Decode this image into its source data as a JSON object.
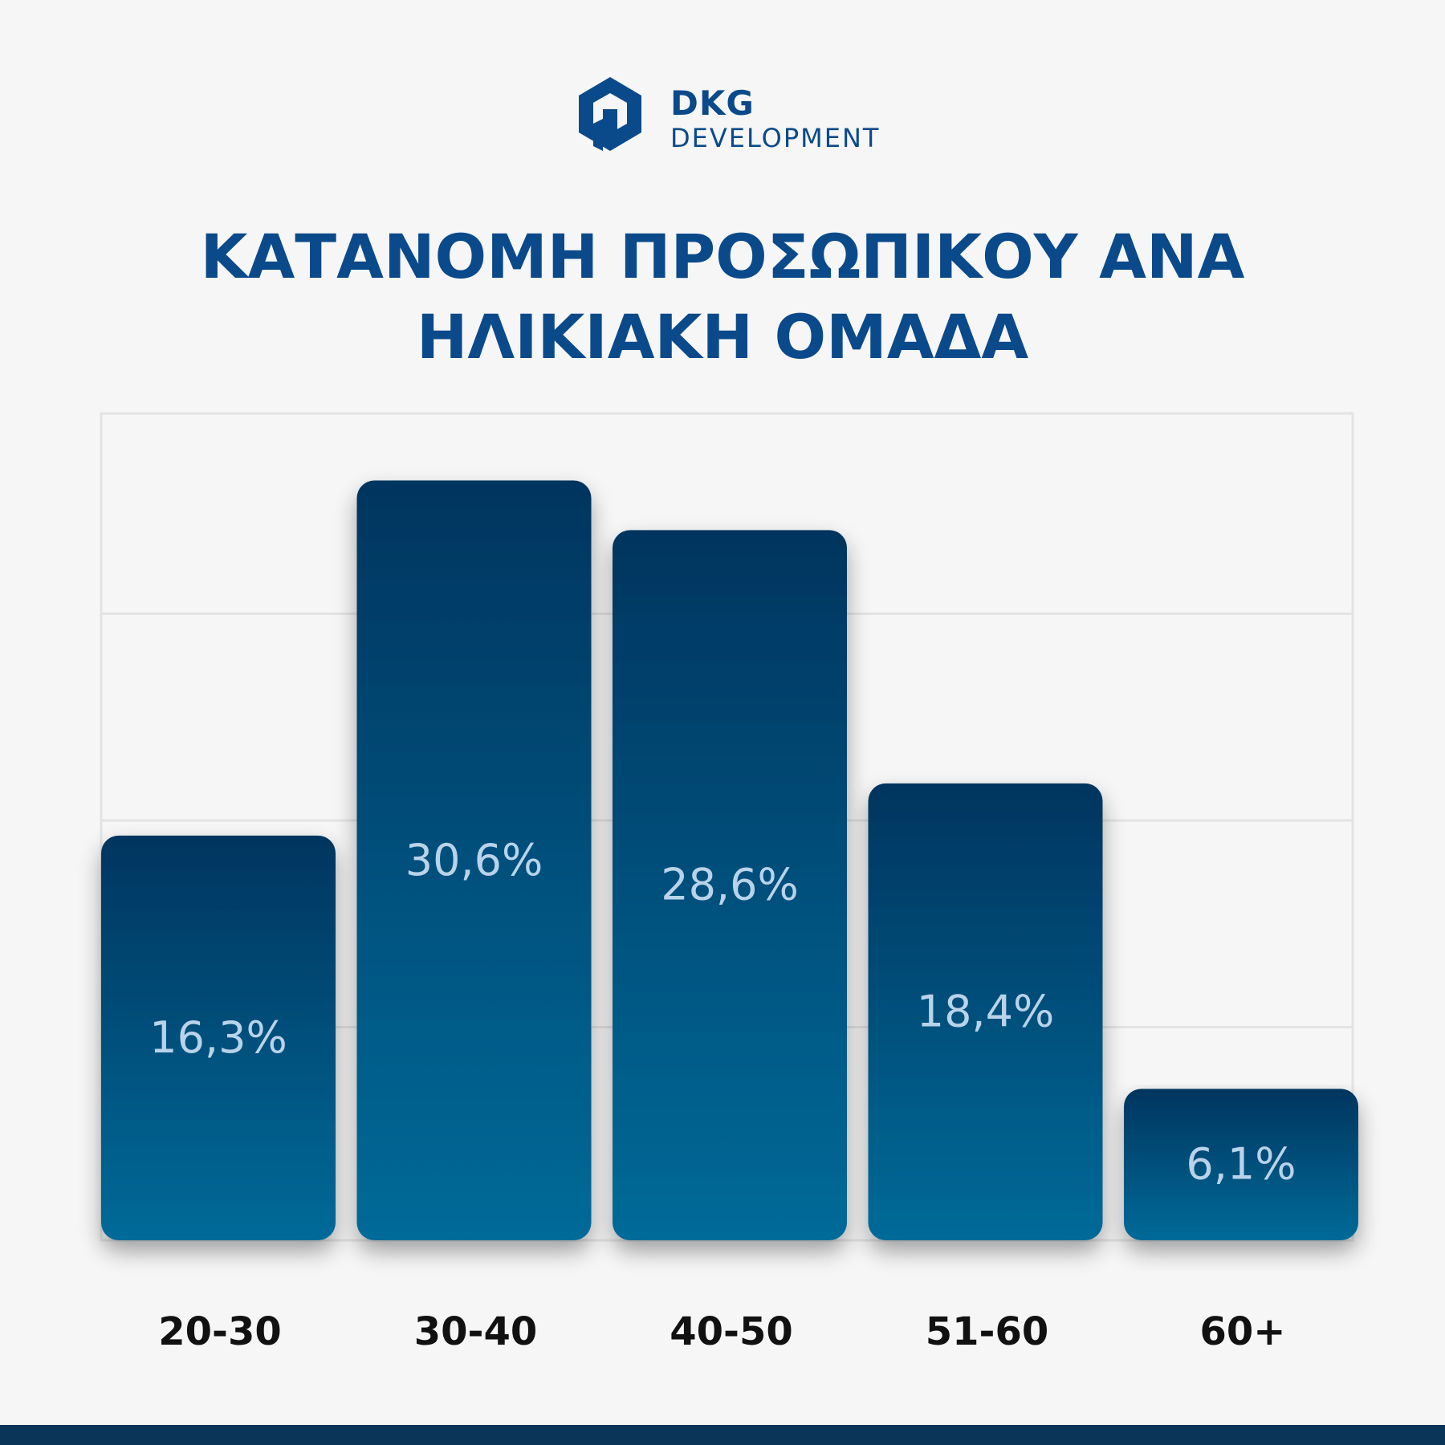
{
  "brand": {
    "name_top": "DKG",
    "name_bottom": "DEVELOPMENT"
  },
  "colors": {
    "title": "#0b4a8a",
    "bar_top": "#04355f",
    "bar_bottom": "#066a98",
    "label": "#b8d3ea",
    "footer": "#0b3558"
  },
  "chart_data": {
    "type": "bar",
    "title_lines": [
      "ΚΑΤΑΝΟΜΗ ΠΡΟΣΩΠΙΚΟΥ ΑΝΑ",
      "ΗΛΙΚΙΑΚΗ ΟΜΑΔΑ"
    ],
    "categories": [
      "20-30",
      "30-40",
      "40-50",
      "51-60",
      "60+"
    ],
    "values": [
      16.3,
      30.6,
      28.6,
      18.4,
      6.1
    ],
    "value_labels": [
      "16,3%",
      "30,6%",
      "28,6%",
      "18,4%",
      "6,1%"
    ],
    "xlabel": "",
    "ylabel": "",
    "ylim": [
      0,
      33.3
    ],
    "grid": true,
    "legend": "none"
  }
}
